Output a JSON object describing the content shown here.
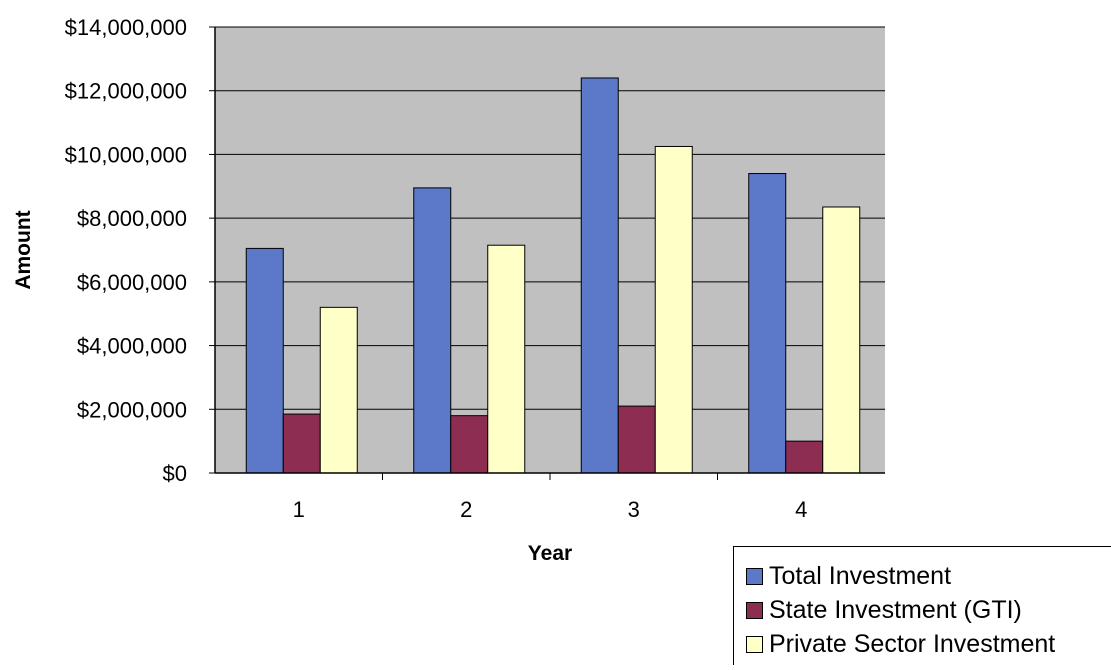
{
  "chart_data": {
    "type": "bar",
    "title": "",
    "xlabel": "Year",
    "ylabel": "Amount",
    "categories": [
      "1",
      "2",
      "3",
      "4"
    ],
    "ylim": [
      0,
      14000000
    ],
    "yticks": [
      0,
      2000000,
      4000000,
      6000000,
      8000000,
      10000000,
      12000000,
      14000000
    ],
    "ytick_labels": [
      "$0",
      "$2,000,000",
      "$4,000,000",
      "$6,000,000",
      "$8,000,000",
      "$10,000,000",
      "$12,000,000",
      "$14,000,000"
    ],
    "grid": true,
    "legend_position": "bottom-right",
    "plot_background": "#c0c0c0",
    "series": [
      {
        "name": "Total Investment",
        "color": "#5b78c9",
        "values": [
          7050000,
          8950000,
          12400000,
          9400000
        ]
      },
      {
        "name": "State Investment (GTI)",
        "color": "#8e2d52",
        "values": [
          1850000,
          1800000,
          2100000,
          1000000
        ]
      },
      {
        "name": "Private Sector Investment",
        "color": "#ffffc8",
        "values": [
          5200000,
          7150000,
          10250000,
          8350000
        ]
      }
    ]
  }
}
